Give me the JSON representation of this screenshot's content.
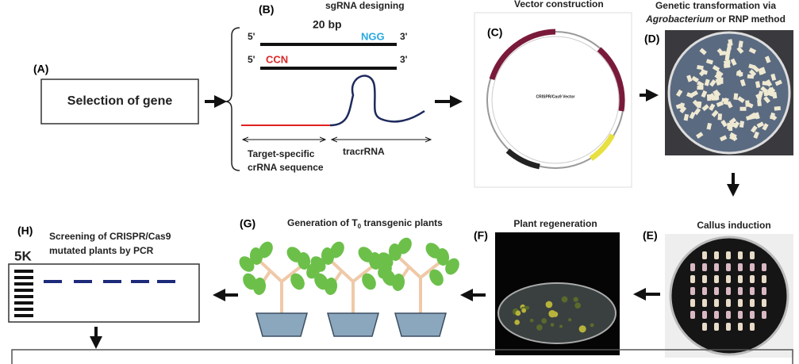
{
  "panels": {
    "a": {
      "label": "(A)",
      "box": "Selection of gene"
    },
    "b": {
      "label": "(B)",
      "title": "sgRNA designing",
      "length": "20 bp",
      "strand1": {
        "five": "5'",
        "pam": "NGG",
        "three": "3'"
      },
      "strand2": {
        "five": "5'",
        "pam": "CCN",
        "three": "3'"
      },
      "crrna": [
        "Target-specific",
        "crRNA sequence"
      ],
      "tracrrna": "tracrRNA"
    },
    "c": {
      "label": "(C)",
      "title": "Vector construction",
      "plasmid_name": "CRISPR/Cas9 Vector"
    },
    "d": {
      "label": "(D)",
      "title_line1": "Genetic transformation via",
      "title_italic": "Agrobacterium",
      "title_rest": "or RNP method"
    },
    "e": {
      "label": "(E)",
      "title": "Callus induction"
    },
    "f": {
      "label": "(F)",
      "title": "Plant regeneration"
    },
    "g": {
      "label": "(G)",
      "title_start": "Generation of T",
      "title_sub": "0",
      "title_end": "transgenic plants"
    },
    "h": {
      "label": "(H)",
      "title": [
        "Screening of CRISPR/Cas9",
        "mutated plants by PCR"
      ],
      "ladder": "5K"
    }
  }
}
